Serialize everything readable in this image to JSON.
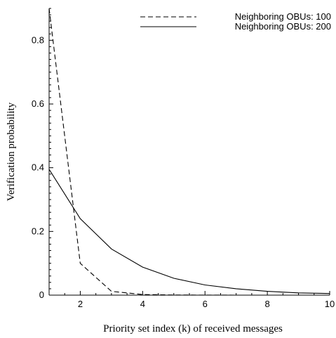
{
  "chart_data": {
    "type": "line",
    "xlabel": "Priority set index (k) of received messages",
    "ylabel": "Verification probability",
    "xlim": [
      1,
      10
    ],
    "ylim": [
      0,
      0.9
    ],
    "x_ticks": [
      2,
      4,
      6,
      8,
      10
    ],
    "y_ticks": [
      0,
      0.2,
      0.4,
      0.6,
      0.8
    ],
    "grid": false,
    "legend_position": "top-right",
    "series": [
      {
        "name": "Neighboring OBUs: 100",
        "line_style": "dashed",
        "color": "#000000",
        "x": [
          1,
          2,
          3,
          4,
          5,
          6,
          7,
          8,
          9,
          10
        ],
        "y": [
          0.9,
          0.1,
          0.012,
          0.002,
          0.0005,
          0.0002,
          0.0001,
          0.0001,
          0.0001,
          0.0001
        ]
      },
      {
        "name": "Neighboring OBUs: 200",
        "line_style": "solid",
        "color": "#000000",
        "x": [
          1,
          2,
          3,
          4,
          5,
          6,
          7,
          8,
          9,
          10
        ],
        "y": [
          0.395,
          0.24,
          0.145,
          0.088,
          0.053,
          0.032,
          0.02,
          0.012,
          0.007,
          0.005
        ]
      }
    ]
  }
}
